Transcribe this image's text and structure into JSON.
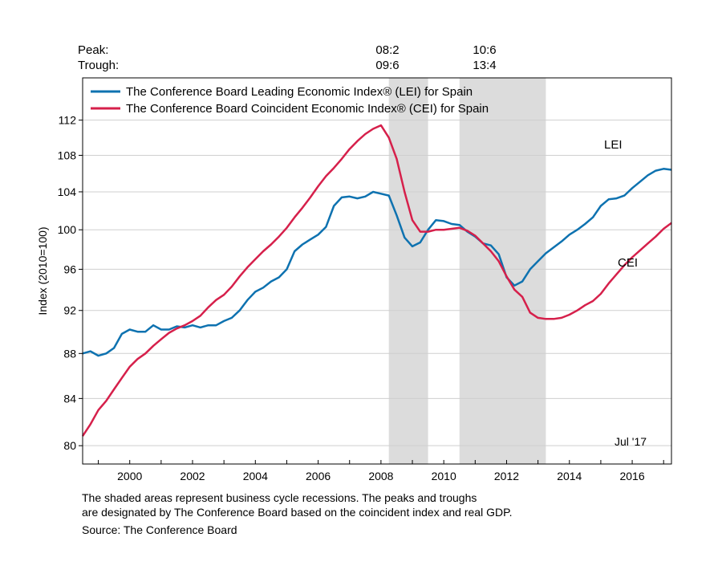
{
  "chart_data": {
    "type": "line",
    "ylabel": "Index (2010=100)",
    "y_scale": "log",
    "ylim": [
      78.5,
      117
    ],
    "xlim": [
      1998.5,
      2017.25
    ],
    "y_ticks": [
      80,
      84,
      88,
      92,
      96,
      100,
      104,
      108,
      112
    ],
    "x_ticks": [
      2000,
      2002,
      2004,
      2006,
      2008,
      2010,
      2012,
      2014,
      2016
    ],
    "grid": "horizontal",
    "legend_position": "top-left",
    "peak_trough": {
      "peak_label": "Peak:",
      "trough_label": "Trough:",
      "peaks": [
        "08:2",
        "10:6"
      ],
      "troughs": [
        "09:6",
        "13:4"
      ]
    },
    "recessions": [
      {
        "start": 2008.25,
        "end": 2009.5
      },
      {
        "start": 2010.5,
        "end": 2013.25
      }
    ],
    "annotations": [
      "LEI",
      "CEI",
      "Jul '17"
    ],
    "series": [
      {
        "name": "The Conference Board Leading Economic Index® (LEI) for Spain",
        "short": "LEI",
        "color": "#0e72b0",
        "points": [
          [
            1998.5,
            88.0
          ],
          [
            1998.75,
            88.2
          ],
          [
            1999.0,
            87.8
          ],
          [
            1999.25,
            88.0
          ],
          [
            1999.5,
            88.5
          ],
          [
            1999.75,
            89.8
          ],
          [
            2000.0,
            90.2
          ],
          [
            2000.25,
            90.0
          ],
          [
            2000.5,
            90.0
          ],
          [
            2000.75,
            90.6
          ],
          [
            2001.0,
            90.2
          ],
          [
            2001.25,
            90.2
          ],
          [
            2001.5,
            90.5
          ],
          [
            2001.75,
            90.4
          ],
          [
            2002.0,
            90.6
          ],
          [
            2002.25,
            90.4
          ],
          [
            2002.5,
            90.6
          ],
          [
            2002.75,
            90.6
          ],
          [
            2003.0,
            91.0
          ],
          [
            2003.25,
            91.3
          ],
          [
            2003.5,
            92.0
          ],
          [
            2003.75,
            93.0
          ],
          [
            2004.0,
            93.8
          ],
          [
            2004.25,
            94.2
          ],
          [
            2004.5,
            94.8
          ],
          [
            2004.75,
            95.2
          ],
          [
            2005.0,
            96.0
          ],
          [
            2005.25,
            97.8
          ],
          [
            2005.5,
            98.5
          ],
          [
            2005.75,
            99.0
          ],
          [
            2006.0,
            99.5
          ],
          [
            2006.25,
            100.3
          ],
          [
            2006.5,
            102.5
          ],
          [
            2006.75,
            103.4
          ],
          [
            2007.0,
            103.5
          ],
          [
            2007.25,
            103.3
          ],
          [
            2007.5,
            103.5
          ],
          [
            2007.75,
            104.0
          ],
          [
            2008.0,
            103.8
          ],
          [
            2008.25,
            103.6
          ],
          [
            2008.5,
            101.5
          ],
          [
            2008.75,
            99.2
          ],
          [
            2009.0,
            98.3
          ],
          [
            2009.25,
            98.7
          ],
          [
            2009.5,
            100.0
          ],
          [
            2009.75,
            101.0
          ],
          [
            2010.0,
            100.9
          ],
          [
            2010.25,
            100.6
          ],
          [
            2010.5,
            100.5
          ],
          [
            2010.75,
            99.8
          ],
          [
            2011.0,
            99.3
          ],
          [
            2011.25,
            98.6
          ],
          [
            2011.5,
            98.4
          ],
          [
            2011.75,
            97.5
          ],
          [
            2012.0,
            95.2
          ],
          [
            2012.25,
            94.4
          ],
          [
            2012.5,
            94.8
          ],
          [
            2012.75,
            96.0
          ],
          [
            2013.0,
            96.8
          ],
          [
            2013.25,
            97.6
          ],
          [
            2013.5,
            98.2
          ],
          [
            2013.75,
            98.8
          ],
          [
            2014.0,
            99.5
          ],
          [
            2014.25,
            100.0
          ],
          [
            2014.5,
            100.6
          ],
          [
            2014.75,
            101.3
          ],
          [
            2015.0,
            102.5
          ],
          [
            2015.25,
            103.2
          ],
          [
            2015.5,
            103.3
          ],
          [
            2015.75,
            103.6
          ],
          [
            2016.0,
            104.4
          ],
          [
            2016.25,
            105.1
          ],
          [
            2016.5,
            105.8
          ],
          [
            2016.75,
            106.3
          ],
          [
            2017.0,
            106.5
          ],
          [
            2017.25,
            106.4
          ]
        ]
      },
      {
        "name": "The Conference Board Coincident Economic Index® (CEI) for Spain",
        "short": "CEI",
        "color": "#d6204b",
        "points": [
          [
            1998.5,
            80.8
          ],
          [
            1998.75,
            81.8
          ],
          [
            1999.0,
            83.0
          ],
          [
            1999.25,
            83.8
          ],
          [
            1999.5,
            84.8
          ],
          [
            1999.75,
            85.8
          ],
          [
            2000.0,
            86.8
          ],
          [
            2000.25,
            87.5
          ],
          [
            2000.5,
            88.0
          ],
          [
            2000.75,
            88.7
          ],
          [
            2001.0,
            89.3
          ],
          [
            2001.25,
            89.9
          ],
          [
            2001.5,
            90.3
          ],
          [
            2001.75,
            90.6
          ],
          [
            2002.0,
            91.0
          ],
          [
            2002.25,
            91.5
          ],
          [
            2002.5,
            92.3
          ],
          [
            2002.75,
            93.0
          ],
          [
            2003.0,
            93.5
          ],
          [
            2003.25,
            94.3
          ],
          [
            2003.5,
            95.3
          ],
          [
            2003.75,
            96.2
          ],
          [
            2004.0,
            97.0
          ],
          [
            2004.25,
            97.8
          ],
          [
            2004.5,
            98.5
          ],
          [
            2004.75,
            99.3
          ],
          [
            2005.0,
            100.2
          ],
          [
            2005.25,
            101.3
          ],
          [
            2005.5,
            102.3
          ],
          [
            2005.75,
            103.4
          ],
          [
            2006.0,
            104.6
          ],
          [
            2006.25,
            105.7
          ],
          [
            2006.5,
            106.6
          ],
          [
            2006.75,
            107.6
          ],
          [
            2007.0,
            108.7
          ],
          [
            2007.25,
            109.6
          ],
          [
            2007.5,
            110.4
          ],
          [
            2007.75,
            111.0
          ],
          [
            2008.0,
            111.4
          ],
          [
            2008.25,
            110.0
          ],
          [
            2008.5,
            107.6
          ],
          [
            2008.75,
            104.0
          ],
          [
            2009.0,
            101.0
          ],
          [
            2009.25,
            99.8
          ],
          [
            2009.5,
            99.8
          ],
          [
            2009.75,
            100.0
          ],
          [
            2010.0,
            100.0
          ],
          [
            2010.25,
            100.1
          ],
          [
            2010.5,
            100.2
          ],
          [
            2010.75,
            99.9
          ],
          [
            2011.0,
            99.4
          ],
          [
            2011.25,
            98.6
          ],
          [
            2011.5,
            97.8
          ],
          [
            2011.75,
            96.8
          ],
          [
            2012.0,
            95.3
          ],
          [
            2012.25,
            94.0
          ],
          [
            2012.5,
            93.3
          ],
          [
            2012.75,
            91.8
          ],
          [
            2013.0,
            91.3
          ],
          [
            2013.25,
            91.2
          ],
          [
            2013.5,
            91.2
          ],
          [
            2013.75,
            91.3
          ],
          [
            2014.0,
            91.6
          ],
          [
            2014.25,
            92.0
          ],
          [
            2014.5,
            92.5
          ],
          [
            2014.75,
            92.9
          ],
          [
            2015.0,
            93.6
          ],
          [
            2015.25,
            94.6
          ],
          [
            2015.5,
            95.5
          ],
          [
            2015.75,
            96.4
          ],
          [
            2016.0,
            97.2
          ],
          [
            2016.25,
            97.9
          ],
          [
            2016.5,
            98.6
          ],
          [
            2016.75,
            99.3
          ],
          [
            2017.0,
            100.1
          ],
          [
            2017.25,
            100.7
          ]
        ]
      }
    ]
  },
  "notes": {
    "line1": "The shaded areas represent business cycle recessions. The peaks and troughs",
    "line2": "are designated by The Conference Board based on the coincident index and real GDP.",
    "line3": "Source: The Conference Board"
  }
}
